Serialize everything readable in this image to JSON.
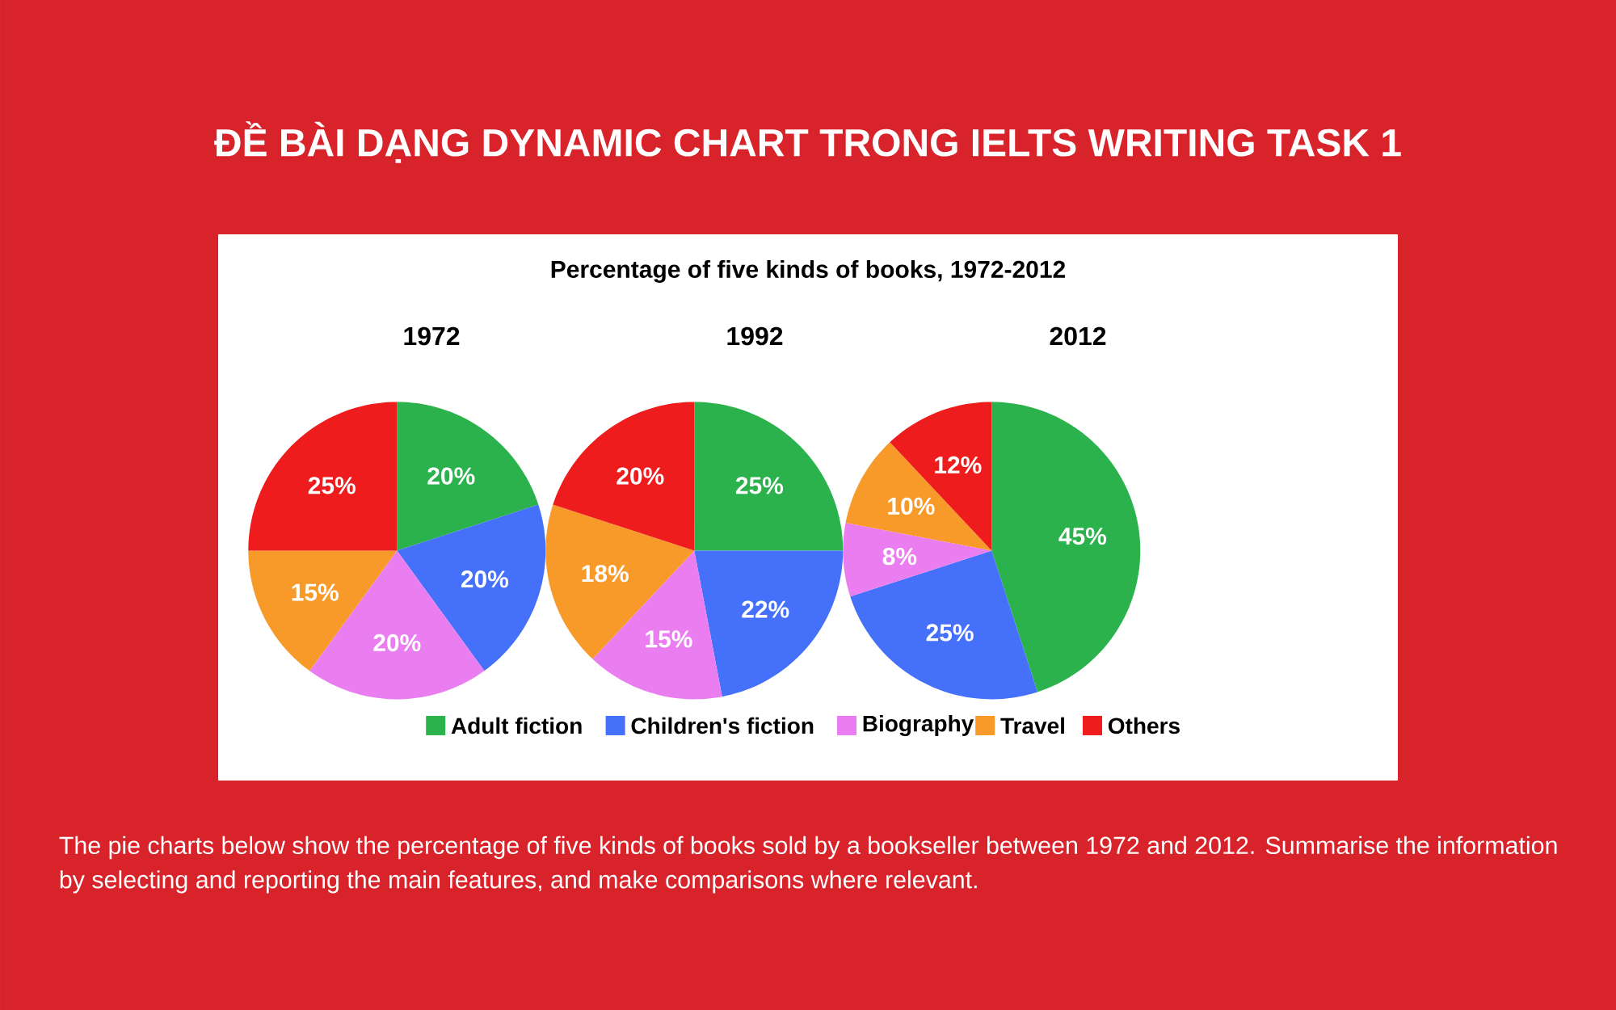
{
  "chart_data": [
    {
      "type": "other",
      "title": "ĐỀ BÀI DẠNG DYNAMIC CHART TRONG IELTS WRITING TASK 1",
      "subtitle": "Percentage of five kinds of books, 1972-2012",
      "annotations": [
        "The pie charts below show the percentage of five kinds of books sold by a bookseller between 1972 and 2012. Summarise the information by selecting and reporting the main features, and make comparisons where relevant."
      ]
    },
    {
      "type": "pie",
      "title": "1972",
      "categories": [
        null,
        null,
        null,
        null,
        null
      ],
      "values": [
        20,
        20,
        20,
        15,
        25
      ],
      "value_labels": [
        "20%",
        "20%",
        "20%",
        "15%",
        "25%"
      ],
      "colors": [
        "#2bb24c",
        "#4470fa",
        "#ea7ef0",
        "#f89a2a",
        "#ee1c1c"
      ]
    },
    {
      "type": "pie",
      "title": "1992",
      "categories": [
        "Adult fiction",
        "Children's fiction",
        "Biography",
        "Travel",
        "Others"
      ],
      "values": [
        25,
        22,
        15,
        18,
        20
      ],
      "value_labels": [
        "25%",
        "22%",
        "15%",
        "18%",
        "20%"
      ],
      "colors": [
        "#2bb24c",
        "#4470fa",
        "#ea7ef0",
        "#f89a2a",
        "#ee1c1c"
      ],
      "legend": "bottom"
    },
    {
      "type": "pie",
      "title": "2012",
      "categories": [
        null,
        null,
        null,
        null,
        null
      ],
      "values": [
        45,
        25,
        8,
        10,
        12
      ],
      "value_labels": [
        "45%",
        "25%",
        "8%",
        "10%",
        "12%"
      ],
      "colors": [
        "#2bb24c",
        "#4470fa",
        "#ea7ef0",
        "#f89a2a",
        "#ee1c1c"
      ]
    }
  ]
}
